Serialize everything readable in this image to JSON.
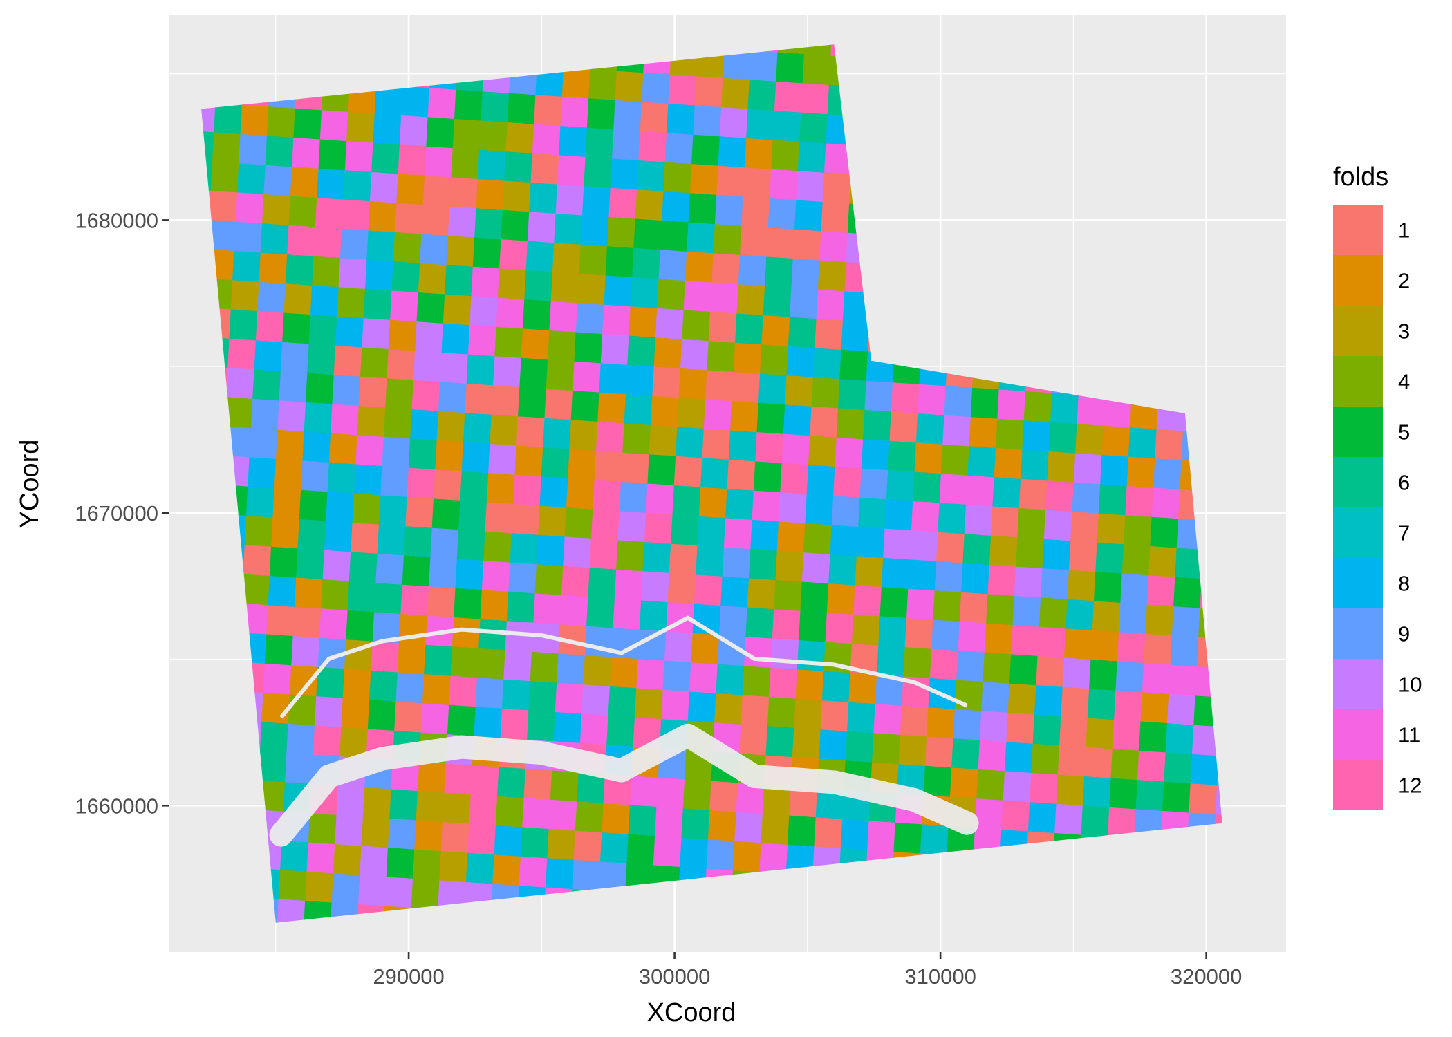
{
  "chart_data": {
    "type": "heatmap",
    "title": "",
    "xlabel": "XCoord",
    "ylabel": "YCoord",
    "xlim": [
      281000,
      323000
    ],
    "ylim": [
      1655000,
      1687000
    ],
    "x_ticks": [
      290000,
      300000,
      310000,
      320000
    ],
    "x_tick_labels": [
      "290000",
      "300000",
      "310000",
      "320000"
    ],
    "y_ticks": [
      1660000,
      1670000,
      1680000
    ],
    "y_tick_labels": [
      "1660000",
      "1670000",
      "1680000"
    ],
    "grid": true,
    "legend": {
      "title": "folds",
      "placement": "right",
      "entries": [
        "1",
        "2",
        "3",
        "4",
        "5",
        "6",
        "7",
        "8",
        "9",
        "10",
        "11",
        "12"
      ],
      "colors": [
        "#F8766D",
        "#DE8C00",
        "#B79F00",
        "#7CAE00",
        "#00BA38",
        "#00C08B",
        "#00BFC4",
        "#00B4F0",
        "#619CFF",
        "#C77CFF",
        "#F564E3",
        "#FF64B0"
      ]
    },
    "block_size_m": 1000,
    "study_area_outline": [
      [
        282200,
        1683800
      ],
      [
        306000,
        1686000
      ],
      [
        307400,
        1675200
      ],
      [
        319200,
        1673400
      ],
      [
        320600,
        1659400
      ],
      [
        285000,
        1656000
      ]
    ],
    "river_channel": {
      "color": "#EBEBEB",
      "path_points": [
        [
          285200,
          1659000
        ],
        [
          287000,
          1661000
        ],
        [
          289000,
          1661600
        ],
        [
          292000,
          1662000
        ],
        [
          295000,
          1661800
        ],
        [
          298000,
          1661200
        ],
        [
          300500,
          1662400
        ],
        [
          303000,
          1661000
        ],
        [
          306000,
          1660800
        ],
        [
          309000,
          1660200
        ],
        [
          311000,
          1659400
        ]
      ]
    }
  }
}
